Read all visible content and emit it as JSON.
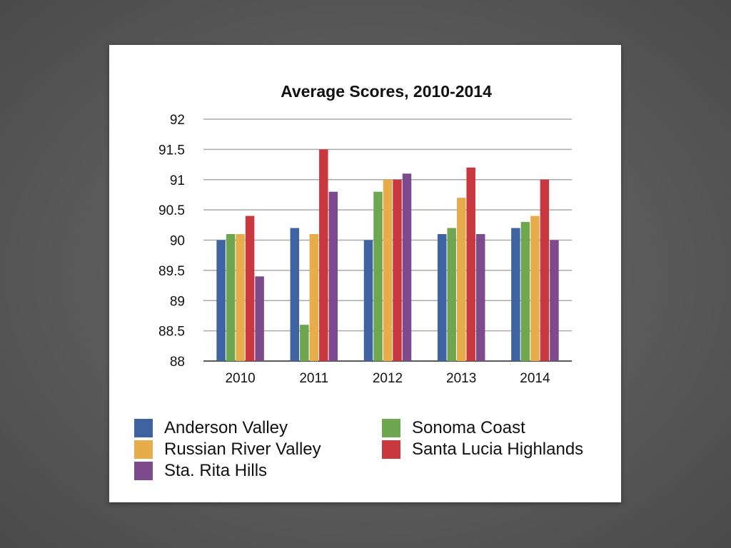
{
  "chart_data": {
    "type": "bar",
    "title": "Average Scores, 2010-2014",
    "categories": [
      "2010",
      "2011",
      "2012",
      "2013",
      "2014"
    ],
    "ylim": [
      88,
      92
    ],
    "yticks": [
      "92",
      "91.5",
      "91",
      "90.5",
      "90",
      "89.5",
      "89",
      "88.5",
      "88"
    ],
    "ytick_values": [
      92,
      91.5,
      91,
      90.5,
      90,
      89.5,
      89,
      88.5,
      88
    ],
    "grid": true,
    "legend_position": "bottom",
    "series": [
      {
        "name": "Anderson Valley",
        "color": "#3f62a0",
        "values": [
          90.0,
          90.2,
          90.0,
          90.1,
          90.2
        ]
      },
      {
        "name": "Sonoma Coast",
        "color": "#6fa650",
        "values": [
          90.1,
          88.6,
          90.8,
          90.2,
          90.3
        ]
      },
      {
        "name": "Russian River Valley",
        "color": "#e8ad4b",
        "values": [
          90.1,
          90.1,
          91.0,
          90.7,
          90.4
        ]
      },
      {
        "name": "Santa Lucia Highlands",
        "color": "#c9383e",
        "values": [
          90.4,
          91.5,
          91.0,
          91.2,
          91.0
        ]
      },
      {
        "name": "Sta. Rita Hills",
        "color": "#7d4a8c",
        "values": [
          89.4,
          90.8,
          91.1,
          90.1,
          90.0
        ]
      }
    ]
  }
}
